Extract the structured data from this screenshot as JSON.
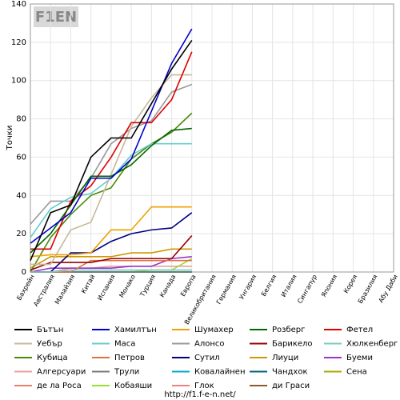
{
  "logo": "F1EN",
  "source": "http://f1.f-e-n.net/",
  "chart_data": {
    "type": "line",
    "ylabel": "Точки",
    "categories": [
      "Бахрейн",
      "Австралия",
      "Малайзия",
      "Китай",
      "Испания",
      "Монако",
      "Турция",
      "Канада",
      "Европа",
      "Великобритания",
      "Германия",
      "Унгария",
      "Белгия",
      "Италия",
      "Сингапур",
      "Япония",
      "Корея",
      "Бразилия",
      "Абу Даби"
    ],
    "ylim": [
      0,
      140
    ],
    "yticks": [
      0,
      20,
      40,
      60,
      80,
      100,
      120,
      140
    ],
    "grid": true,
    "legend": "bottom",
    "series": [
      {
        "name": "Бътън",
        "color": "#000000",
        "values": [
          6,
          31,
          35,
          60,
          70,
          70,
          88,
          106,
          121,
          null,
          null,
          null,
          null,
          null,
          null,
          null,
          null,
          null,
          null
        ]
      },
      {
        "name": "Хамилтън",
        "color": "#0000cc",
        "values": [
          15,
          23,
          31,
          49,
          49,
          59,
          84,
          109,
          127,
          null,
          null,
          null,
          null,
          null,
          null,
          null,
          null,
          null,
          null
        ]
      },
      {
        "name": "Шумахер",
        "color": "#f0a000",
        "values": [
          8,
          9,
          9,
          10,
          22,
          22,
          34,
          34,
          34,
          null,
          null,
          null,
          null,
          null,
          null,
          null,
          null,
          null,
          null
        ]
      },
      {
        "name": "Розберг",
        "color": "#006600",
        "values": [
          10,
          20,
          35,
          50,
          50,
          56,
          66,
          74,
          75,
          null,
          null,
          null,
          null,
          null,
          null,
          null,
          null,
          null,
          null
        ]
      },
      {
        "name": "Фетел",
        "color": "#dd0000",
        "values": [
          12,
          12,
          37,
          45,
          60,
          78,
          78,
          90,
          115,
          null,
          null,
          null,
          null,
          null,
          null,
          null,
          null,
          null,
          null
        ]
      },
      {
        "name": "Уебър",
        "color": "#c8b89a",
        "values": [
          4,
          4,
          22,
          26,
          51,
          76,
          91,
          103,
          103,
          null,
          null,
          null,
          null,
          null,
          null,
          null,
          null,
          null,
          null
        ]
      },
      {
        "name": "Маса",
        "color": "#66cccc",
        "values": [
          18,
          33,
          39,
          41,
          49,
          61,
          67,
          67,
          67,
          null,
          null,
          null,
          null,
          null,
          null,
          null,
          null,
          null,
          null
        ]
      },
      {
        "name": "Алонсо",
        "color": "#999999",
        "values": [
          25,
          37,
          37,
          49,
          67,
          75,
          79,
          94,
          98,
          null,
          null,
          null,
          null,
          null,
          null,
          null,
          null,
          null,
          null
        ]
      },
      {
        "name": "Барикело",
        "color": "#990000",
        "values": [
          1,
          5,
          5,
          5,
          7,
          7,
          7,
          7,
          19,
          null,
          null,
          null,
          null,
          null,
          null,
          null,
          null,
          null,
          null
        ]
      },
      {
        "name": "Хюлкенберг",
        "color": "#77ccbb",
        "values": [
          0,
          0,
          1,
          1,
          1,
          1,
          1,
          1,
          1,
          null,
          null,
          null,
          null,
          null,
          null,
          null,
          null,
          null,
          null
        ]
      },
      {
        "name": "Кубица",
        "color": "#4a8a0a",
        "values": [
          0,
          18,
          30,
          40,
          44,
          59,
          67,
          73,
          83,
          null,
          null,
          null,
          null,
          null,
          null,
          null,
          null,
          null,
          null
        ]
      },
      {
        "name": "Петров",
        "color": "#e07040",
        "values": [
          0,
          0,
          0,
          6,
          6,
          6,
          6,
          6,
          6,
          null,
          null,
          null,
          null,
          null,
          null,
          null,
          null,
          null,
          null
        ]
      },
      {
        "name": "Сутил",
        "color": "#000080",
        "values": [
          0,
          0,
          10,
          10,
          16,
          20,
          22,
          23,
          31,
          null,
          null,
          null,
          null,
          null,
          null,
          null,
          null,
          null,
          null
        ]
      },
      {
        "name": "Лиуци",
        "color": "#cc9900",
        "values": [
          2,
          8,
          8,
          8,
          8,
          10,
          10,
          12,
          12,
          null,
          null,
          null,
          null,
          null,
          null,
          null,
          null,
          null,
          null
        ]
      },
      {
        "name": "Буеми",
        "color": "#9933cc",
        "values": [
          0,
          2,
          2,
          2,
          2,
          3,
          3,
          7,
          8,
          null,
          null,
          null,
          null,
          null,
          null,
          null,
          null,
          null,
          null
        ]
      },
      {
        "name": "Алгерсуари",
        "color": "#e8a0a0",
        "values": [
          0,
          0,
          2,
          2,
          3,
          3,
          3,
          3,
          3,
          null,
          null,
          null,
          null,
          null,
          null,
          null,
          null,
          null,
          null
        ]
      },
      {
        "name": "Трули",
        "color": "#777777",
        "values": [
          0,
          0,
          0,
          0,
          0,
          0,
          0,
          0,
          0,
          null,
          null,
          null,
          null,
          null,
          null,
          null,
          null,
          null,
          null
        ]
      },
      {
        "name": "Ковалайнен",
        "color": "#00aacc",
        "values": [
          0,
          0,
          0,
          0,
          0,
          0,
          0,
          0,
          0,
          null,
          null,
          null,
          null,
          null,
          null,
          null,
          null,
          null,
          null
        ]
      },
      {
        "name": "Чандхок",
        "color": "#006080",
        "values": [
          0,
          0,
          0,
          0,
          0,
          0,
          0,
          0,
          0,
          null,
          null,
          null,
          null,
          null,
          null,
          null,
          null,
          null,
          null
        ]
      },
      {
        "name": "Сена",
        "color": "#aaaa00",
        "values": [
          0,
          0,
          0,
          0,
          0,
          0,
          0,
          0,
          0,
          null,
          null,
          null,
          null,
          null,
          null,
          null,
          null,
          null,
          null
        ]
      },
      {
        "name": "де ла Роса",
        "color": "#e8806a",
        "values": [
          0,
          0,
          0,
          0,
          0,
          0,
          0,
          0,
          0,
          null,
          null,
          null,
          null,
          null,
          null,
          null,
          null,
          null,
          null
        ]
      },
      {
        "name": "Кобаяши",
        "color": "#99e033",
        "values": [
          0,
          0,
          0,
          0,
          0,
          0,
          1,
          1,
          7,
          null,
          null,
          null,
          null,
          null,
          null,
          null,
          null,
          null,
          null
        ]
      },
      {
        "name": "Глок",
        "color": "#f08080",
        "values": [
          0,
          0,
          0,
          0,
          0,
          0,
          0,
          0,
          0,
          null,
          null,
          null,
          null,
          null,
          null,
          null,
          null,
          null,
          null
        ]
      },
      {
        "name": "ди Граси",
        "color": "#8b5a2b",
        "values": [
          0,
          0,
          0,
          0,
          0,
          0,
          0,
          0,
          0,
          null,
          null,
          null,
          null,
          null,
          null,
          null,
          null,
          null,
          null
        ]
      }
    ]
  }
}
